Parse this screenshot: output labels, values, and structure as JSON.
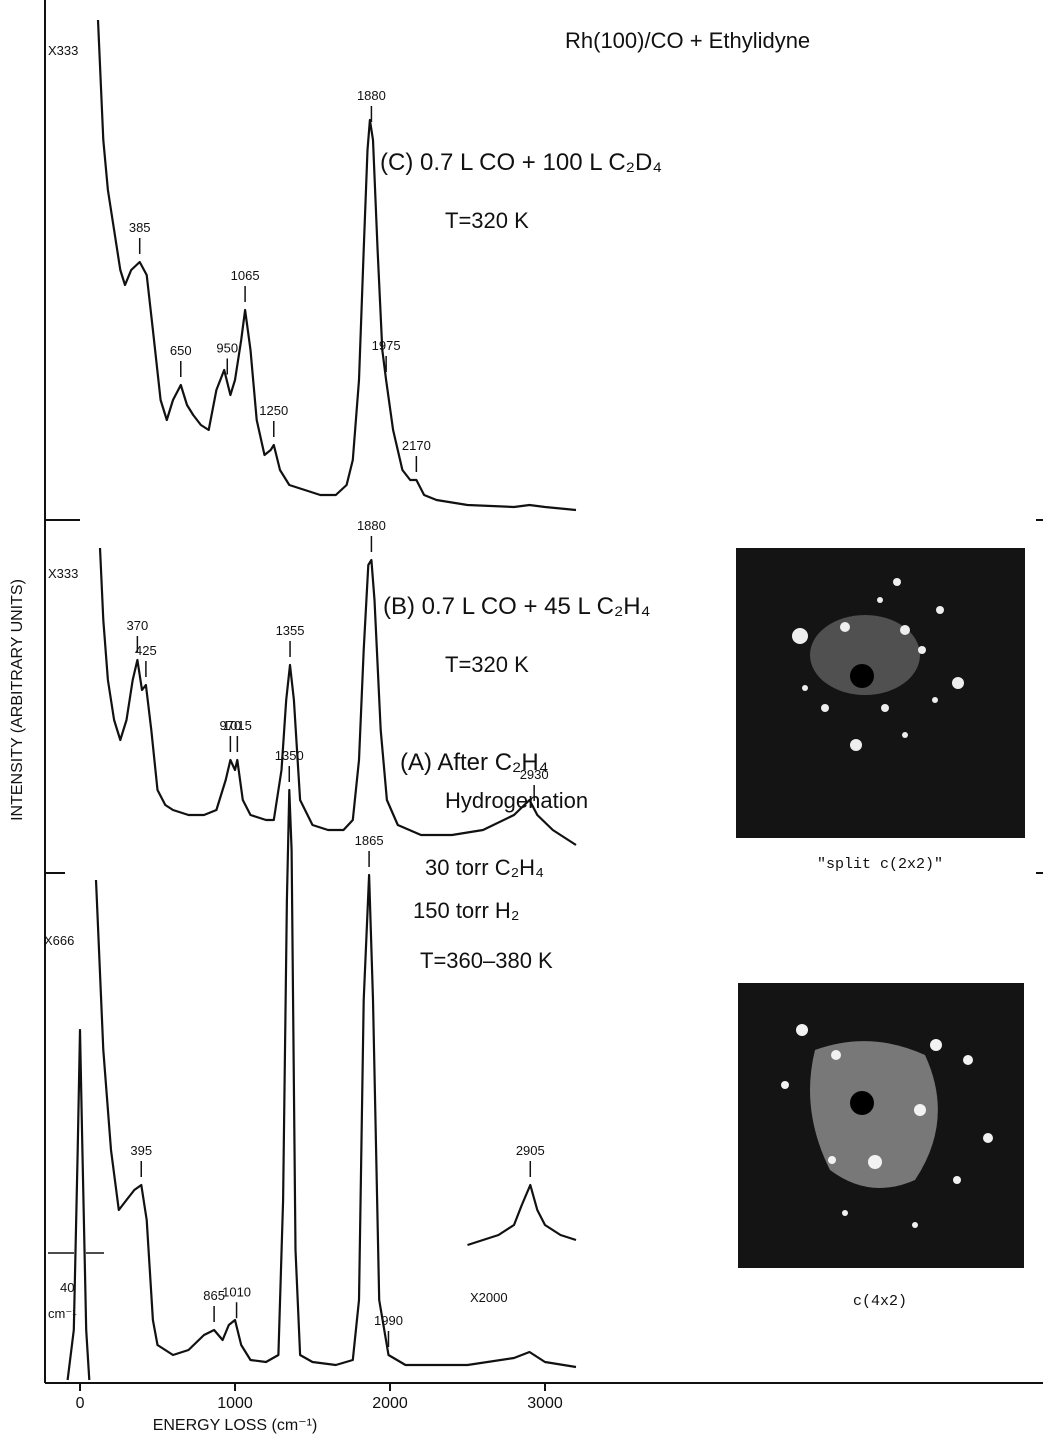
{
  "chart_data": {
    "type": "line",
    "title": "Rh(100)/CO + Ethylidyne",
    "xlabel": "ENERGY LOSS (cm⁻¹)",
    "ylabel": "INTENSITY  (ARBITRARY UNITS)",
    "xlim": [
      -226,
      6213
    ],
    "ylim": [
      0,
      1383
    ],
    "xticks": [
      0,
      1000,
      2000,
      3000
    ],
    "grid": false,
    "series": [
      {
        "color": "#111111",
        "x": [
          116,
          150,
          180,
          220,
          260,
          290,
          330,
          385,
          430,
          470,
          520,
          560,
          600,
          650,
          690,
          730,
          780,
          830,
          880,
          930,
          970,
          1000,
          1040,
          1065,
          1100,
          1140,
          1190,
          1230,
          1250,
          1290,
          1350,
          1450,
          1550,
          1650,
          1720,
          1760,
          1800,
          1830,
          1855,
          1870,
          1890,
          1920,
          1950,
          1975,
          2020,
          2080,
          2130,
          2170,
          2220,
          2300,
          2500,
          2800,
          2900,
          3000,
          3200
        ],
        "values": [
          1363,
          1243,
          1193,
          1153,
          1113,
          1098,
          1113,
          1121,
          1108,
          1053,
          983,
          963,
          983,
          998,
          978,
          968,
          958,
          953,
          993,
          1013,
          988,
          1003,
          1043,
          1073,
          1033,
          963,
          928,
          933,
          938,
          913,
          898,
          893,
          888,
          888,
          898,
          923,
          1003,
          1133,
          1233,
          1263,
          1243,
          1133,
          1033,
          1003,
          953,
          913,
          903,
          903,
          888,
          883,
          878,
          876,
          878,
          876,
          873
        ],
        "peaks": [
          385,
          650,
          950,
          1065,
          1250,
          1880,
          1975,
          2170
        ]
      },
      {
        "color": "#111111",
        "x": [
          129,
          150,
          180,
          220,
          260,
          300,
          340,
          370,
          400,
          425,
          460,
          500,
          550,
          600,
          700,
          800,
          880,
          940,
          970,
          1000,
          1015,
          1050,
          1100,
          1200,
          1250,
          1300,
          1330,
          1355,
          1380,
          1420,
          1500,
          1600,
          1700,
          1760,
          1800,
          1830,
          1860,
          1880,
          1900,
          1940,
          1980,
          2050,
          2200,
          2400,
          2600,
          2800,
          2900,
          2950,
          3050,
          3200
        ],
        "values": [
          835,
          763,
          703,
          663,
          643,
          663,
          703,
          723,
          693,
          698,
          653,
          593,
          578,
          573,
          568,
          568,
          573,
          603,
          623,
          613,
          623,
          583,
          568,
          563,
          563,
          613,
          683,
          718,
          683,
          583,
          558,
          553,
          553,
          563,
          623,
          733,
          818,
          823,
          783,
          653,
          583,
          558,
          548,
          548,
          553,
          568,
          583,
          568,
          553,
          538
        ],
        "peaks": [
          370,
          425,
          970,
          1015,
          1355,
          1880,
          2930
        ]
      },
      {
        "color": "#111111",
        "x": [
          103,
          150,
          200,
          250,
          300,
          350,
          395,
          430,
          470,
          500,
          600,
          700,
          800,
          865,
          920,
          960,
          1000,
          1040,
          1100,
          1200,
          1280,
          1310,
          1335,
          1350,
          1365,
          1390,
          1420,
          1500,
          1650,
          1760,
          1800,
          1830,
          1865,
          1890,
          1930,
          1990,
          2100,
          2500,
          2800,
          2900,
          3000,
          3200
        ],
        "values": [
          503,
          333,
          233,
          173,
          183,
          193,
          198,
          163,
          63,
          38,
          28,
          33,
          48,
          53,
          43,
          58,
          63,
          38,
          23,
          21,
          28,
          183,
          483,
          593,
          533,
          133,
          28,
          21,
          18,
          23,
          83,
          383,
          508,
          383,
          83,
          28,
          18,
          18,
          25,
          31,
          21,
          16
        ],
        "peaks": [
          395,
          865,
          1010,
          1350,
          1865,
          1990
        ]
      },
      {
        "color": "#111111",
        "x": [
          -80,
          -40,
          -15,
          0,
          15,
          40,
          60
        ],
        "values": [
          3,
          53,
          233,
          353,
          233,
          53,
          3
        ]
      },
      {
        "color": "#111111",
        "x": [
          2500,
          2600,
          2700,
          2800,
          2850,
          2905,
          2950,
          3000,
          3100,
          3200
        ],
        "values": [
          138,
          143,
          148,
          158,
          178,
          198,
          173,
          158,
          148,
          143
        ],
        "peaks": [
          2905
        ]
      }
    ],
    "annotations": [
      "(C) 0.7 L CO + 100 L C₂D₄",
      "T=320 K",
      "(B) 0.7 L CO + 45 L C₂H₄",
      "T=320 K",
      "(A) After C₂H₄",
      "Hydrogenation",
      "30 torr C₂H₄",
      "150 torr H₂",
      "T=360–380 K",
      "X333",
      "X333",
      "X666",
      "X2000",
      "40",
      "cm⁻¹"
    ],
    "images": [
      {
        "caption": "\"split c(2x2)\""
      },
      {
        "caption": "c(4x2)"
      }
    ]
  }
}
